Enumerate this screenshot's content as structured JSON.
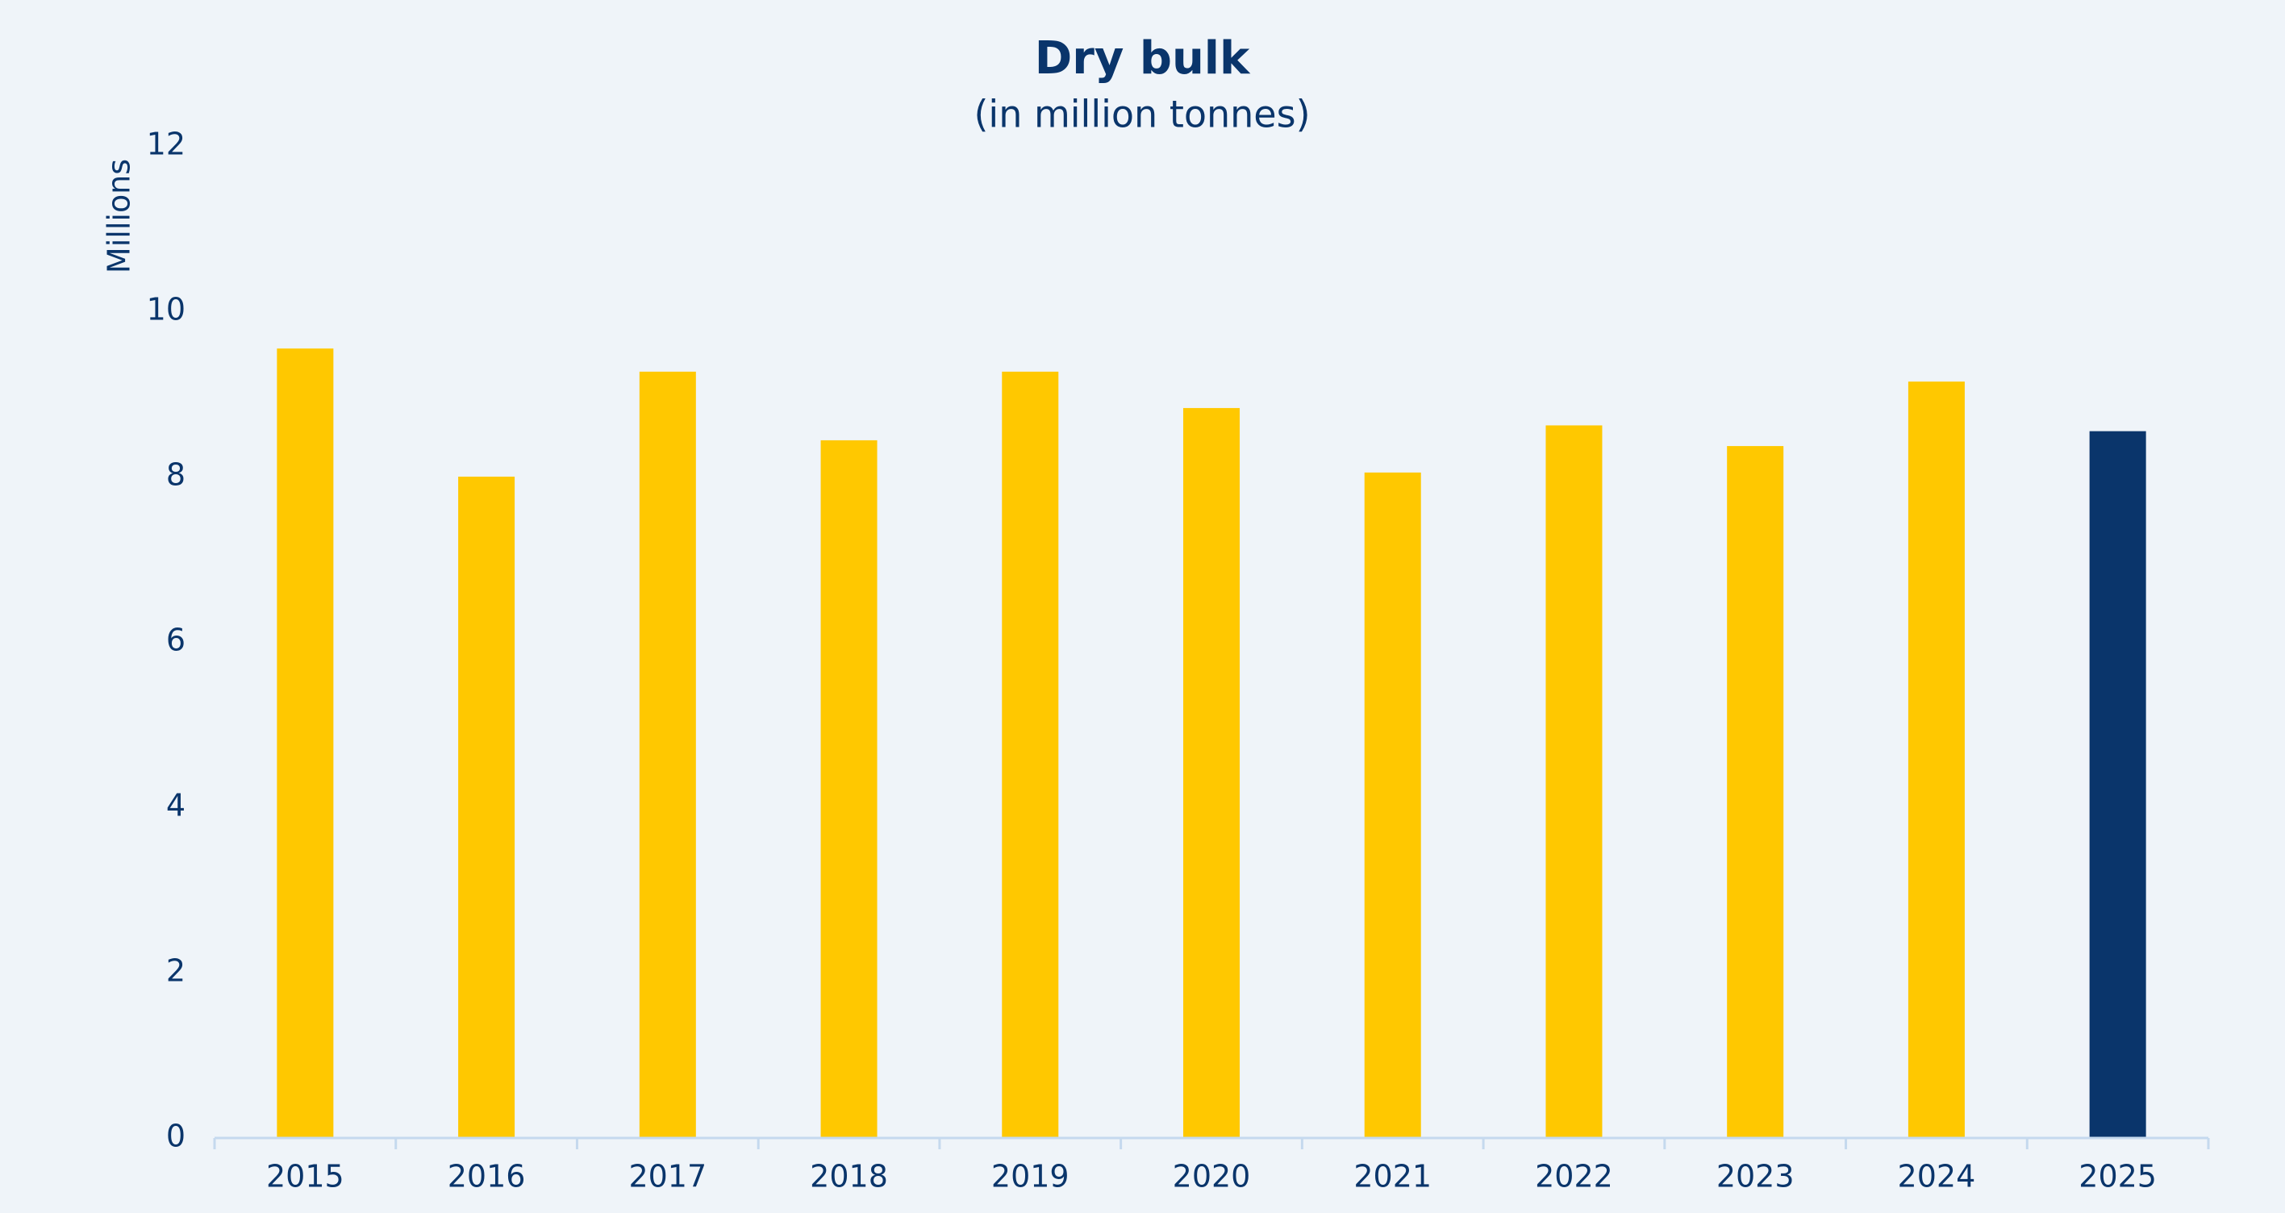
{
  "chart_data": {
    "type": "bar",
    "title": "Dry bulk",
    "subtitle": "(in million tonnes)",
    "y_label": "Millions",
    "categories": [
      "2015",
      "2016",
      "2017",
      "2018",
      "2019",
      "2020",
      "2021",
      "2022",
      "2023",
      "2024",
      "2025"
    ],
    "values": [
      9.55,
      8.0,
      9.27,
      8.44,
      9.27,
      8.83,
      8.05,
      8.62,
      8.37,
      9.15,
      8.55
    ],
    "colors": [
      "#ffc800",
      "#ffc800",
      "#ffc800",
      "#ffc800",
      "#ffc800",
      "#ffc800",
      "#ffc800",
      "#ffc800",
      "#ffc800",
      "#ffc800",
      "#0a356b"
    ],
    "ylim": [
      0,
      12
    ],
    "yticks": [
      0,
      2,
      4,
      6,
      8,
      10,
      12
    ],
    "grid": false
  }
}
